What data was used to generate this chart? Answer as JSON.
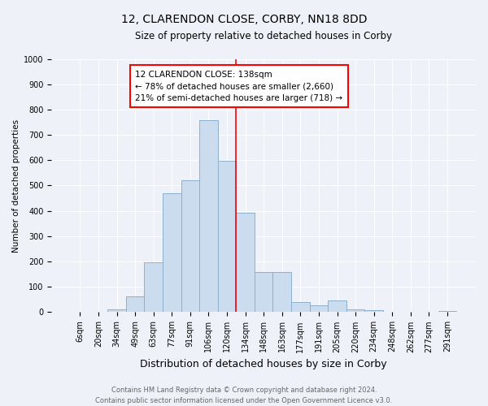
{
  "title1": "12, CLARENDON CLOSE, CORBY, NN18 8DD",
  "title2": "Size of property relative to detached houses in Corby",
  "xlabel": "Distribution of detached houses by size in Corby",
  "ylabel": "Number of detached properties",
  "categories": [
    "6sqm",
    "20sqm",
    "34sqm",
    "49sqm",
    "63sqm",
    "77sqm",
    "91sqm",
    "106sqm",
    "120sqm",
    "134sqm",
    "148sqm",
    "163sqm",
    "177sqm",
    "191sqm",
    "205sqm",
    "220sqm",
    "234sqm",
    "248sqm",
    "262sqm",
    "277sqm",
    "291sqm"
  ],
  "values": [
    0,
    0,
    12,
    63,
    197,
    470,
    520,
    758,
    597,
    393,
    160,
    160,
    40,
    28,
    45,
    10,
    8,
    3,
    2,
    2,
    5
  ],
  "bar_color": "#ccdcef",
  "bar_edge_color": "#8ab0d0",
  "vline_color": "red",
  "vline_x_index": 8.5,
  "annotation_title": "12 CLARENDON CLOSE: 138sqm",
  "annotation_line1": "← 78% of detached houses are smaller (2,660)",
  "annotation_line2": "21% of semi-detached houses are larger (718) →",
  "annotation_box_color": "white",
  "annotation_box_edge": "red",
  "footer1": "Contains HM Land Registry data © Crown copyright and database right 2024.",
  "footer2": "Contains public sector information licensed under the Open Government Licence v3.0.",
  "ylim": [
    0,
    1000
  ],
  "yticks": [
    0,
    100,
    200,
    300,
    400,
    500,
    600,
    700,
    800,
    900,
    1000
  ],
  "bg_color": "#eef2f8",
  "plot_bg_color": "#eef2f8",
  "grid_color": "white",
  "title1_fontsize": 10,
  "title2_fontsize": 8.5,
  "xlabel_fontsize": 9,
  "ylabel_fontsize": 7.5,
  "tick_fontsize": 7,
  "ann_fontsize": 7.5,
  "footer_fontsize": 6
}
